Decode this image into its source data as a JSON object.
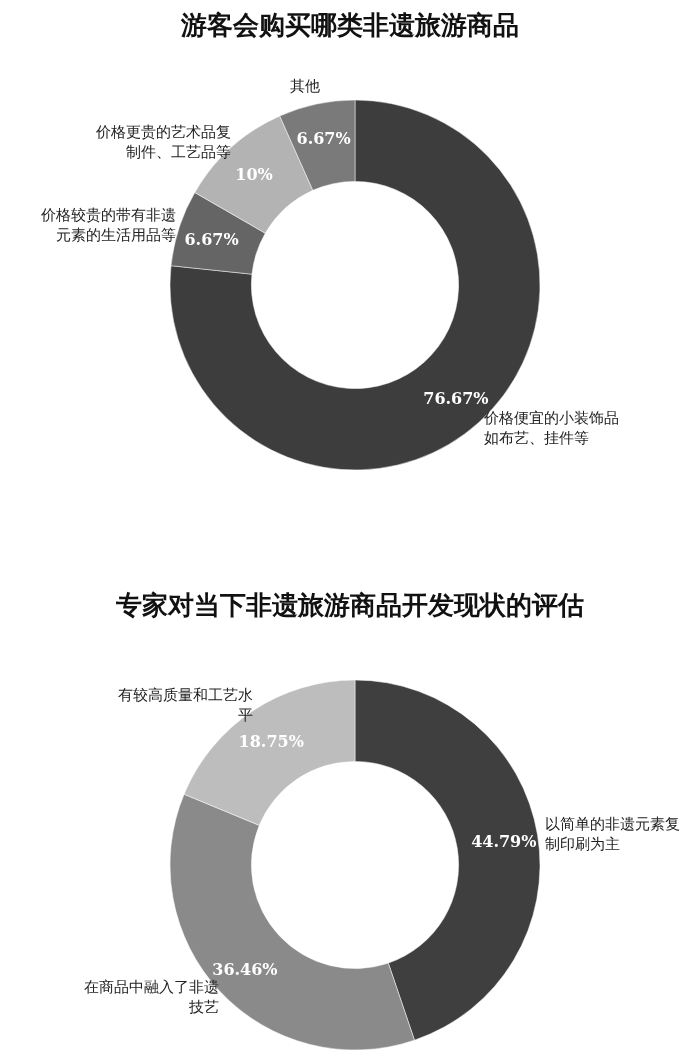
{
  "chart_data": [
    {
      "type": "donut",
      "title": "游客会购买哪类非遗旅游商品",
      "categories": [
        "价格便宜的小装饰品如布艺、挂件等",
        "价格较贵的带有非遗元素的生活用品等",
        "价格更贵的艺术品复制件、工艺品等",
        "其他"
      ],
      "values": [
        76.67,
        6.67,
        10,
        6.67
      ],
      "colors": [
        "#3d3d3d",
        "#656565",
        "#b3b3b3",
        "#7a7a7a"
      ],
      "value_labels": [
        "76.67%",
        "6.67%",
        "10%",
        "6.67%"
      ]
    },
    {
      "type": "donut",
      "title": "专家对当下非遗旅游商品开发现状的评估",
      "categories": [
        "以简单的非遗元素复制印刷为主",
        "在商品中融入了非遗技艺",
        "有较高质量和工艺水平"
      ],
      "values": [
        44.79,
        36.46,
        18.75
      ],
      "colors": [
        "#3f3f3f",
        "#8a8a8a",
        "#bdbdbd"
      ],
      "value_labels": [
        "44.79%",
        "36.46%",
        "18.75%"
      ]
    }
  ]
}
